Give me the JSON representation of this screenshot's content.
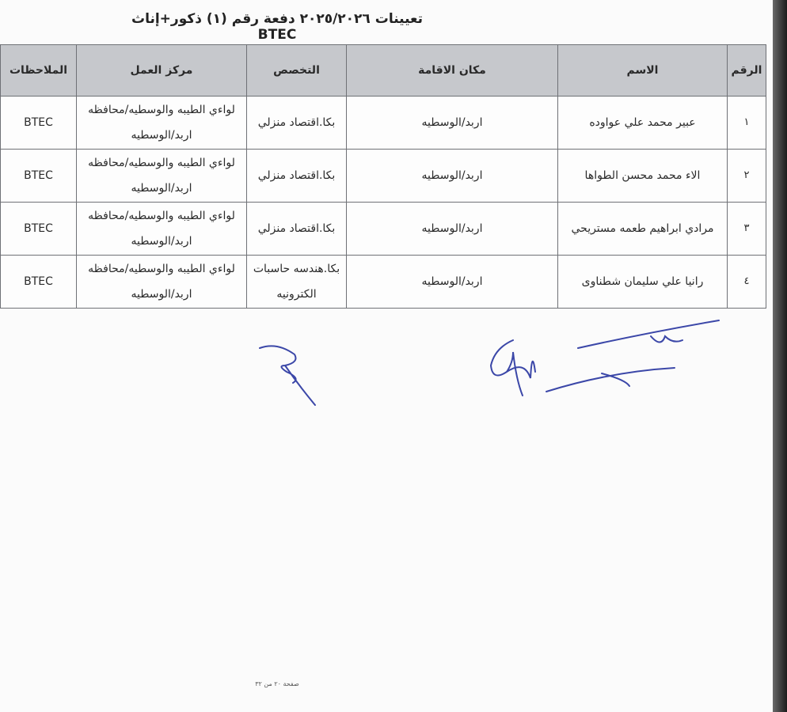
{
  "title": "تعيينات ٢٠٢٥/٢٠٢٦ دفعة رقم (١) ذكور+إناث BTEC",
  "table": {
    "headers": [
      "الرقم",
      "الاسم",
      "مكان الاقامة",
      "التخصص",
      "مركز العمل",
      "الملاحظات"
    ],
    "rows": [
      {
        "num": "١",
        "name": "عبير محمد علي عواوده",
        "residence": "اربد/الوسطيه",
        "specialty": "بكا.اقتصاد منزلي",
        "workplace": "لواءي الطيبه والوسطيه/محافظه اربد/الوسطيه",
        "notes": "BTEC"
      },
      {
        "num": "٢",
        "name": "الاء محمد محسن الطواها",
        "residence": "اربد/الوسطيه",
        "specialty": "بكا.اقتصاد منزلي",
        "workplace": "لواءي الطيبه والوسطيه/محافظه اربد/الوسطيه",
        "notes": "BTEC"
      },
      {
        "num": "٣",
        "name": "مرادي ابراهيم طعمه مستريحي",
        "residence": "اربد/الوسطيه",
        "specialty": "بكا.اقتصاد منزلي",
        "workplace": "لواءي الطيبه والوسطيه/محافظه اربد/الوسطيه",
        "notes": "BTEC"
      },
      {
        "num": "٤",
        "name": "رانيا علي سليمان شطناوى",
        "residence": "اربد/الوسطيه",
        "specialty": "بكا.هندسه حاسبات الكترونيه",
        "workplace": "لواءي الطيبه والوسطيه/محافظه اربد/الوسطيه",
        "notes": "BTEC"
      }
    ]
  },
  "signature_color": "#3b47a8",
  "footer": "صفحة ٢٠ من ٣٢"
}
